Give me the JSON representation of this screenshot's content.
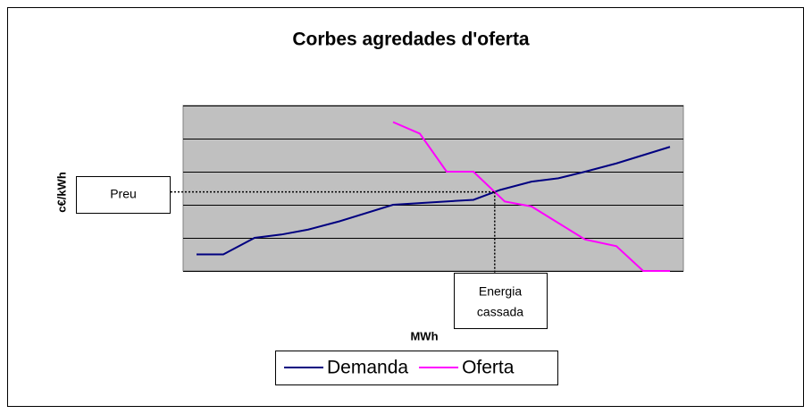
{
  "chart_data": {
    "type": "line",
    "title": "Corbes agredades d'oferta",
    "ylabel": "c€/kWh",
    "xlabel": "MWh",
    "price_label": "Preu",
    "energy_label": [
      "Energia",
      "cassada"
    ],
    "xlim": [
      0,
      56
    ],
    "ylim": [
      0,
      5
    ],
    "yticks": [
      0,
      1,
      2,
      3,
      4,
      5
    ],
    "tick_labels": false,
    "grid": true,
    "plot_background": "#c0c0c0",
    "legend": "bottom",
    "series": [
      {
        "name": "Demanda",
        "color": "#000080",
        "x": [
          1.5,
          4.5,
          8,
          11,
          14,
          17.5,
          23.5,
          32.5,
          35.5,
          39,
          42,
          45,
          48.5,
          54.5
        ],
        "values": [
          0.5,
          0.5,
          1,
          1.1,
          1.25,
          1.5,
          2,
          2.15,
          2.45,
          2.7,
          2.8,
          3,
          3.25,
          3.75
        ]
      },
      {
        "name": "Oferta",
        "color": "#ff00ff",
        "x": [
          23.5,
          26.5,
          29.5,
          32.5,
          36,
          39,
          42,
          45,
          48.5,
          51.5,
          54.5
        ],
        "values": [
          4.5,
          4.15,
          3,
          3,
          2.1,
          1.95,
          1.45,
          0.95,
          0.75,
          0,
          0
        ]
      }
    ]
  }
}
